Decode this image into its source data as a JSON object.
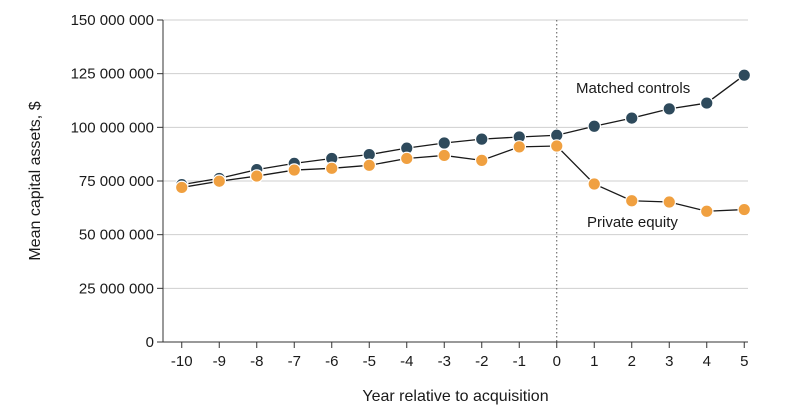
{
  "chart_data": {
    "type": "line",
    "xlabel": "Year relative to acquisition",
    "ylabel": "Mean capital assets, $",
    "x": [
      -10,
      -9,
      -8,
      -7,
      -6,
      -5,
      -4,
      -3,
      -2,
      -1,
      0,
      1,
      2,
      3,
      4,
      5
    ],
    "x_tick_labels": [
      "-10",
      "-9",
      "-8",
      "-7",
      "-6",
      "-5",
      "-4",
      "-3",
      "-2",
      "-1",
      "0",
      "1",
      "2",
      "3",
      "4",
      "5"
    ],
    "xlim": [
      -10.5,
      5.1
    ],
    "ylim": [
      0,
      150000000
    ],
    "y_ticks": [
      0,
      25000000,
      50000000,
      75000000,
      100000000,
      125000000,
      150000000
    ],
    "y_tick_labels": [
      "0",
      "25 000 000",
      "50 000 000",
      "75 000 000",
      "100 000 000",
      "125 000 000",
      "150 000 000"
    ],
    "grid": "horizontal",
    "reference_line_x": 0,
    "series": [
      {
        "name": "Matched controls",
        "color": "#2e4a5c",
        "values": [
          73300000,
          76200000,
          80300000,
          83200000,
          85500000,
          87300000,
          90300000,
          92700000,
          94500000,
          95500000,
          96300000,
          100500000,
          104300000,
          108600000,
          111300000,
          124300000
        ]
      },
      {
        "name": "Private equity",
        "color": "#f0a040",
        "values": [
          72000000,
          74900000,
          77300000,
          80100000,
          80900000,
          82300000,
          85500000,
          86900000,
          84600000,
          90900000,
          91300000,
          73600000,
          65800000,
          65200000,
          60900000,
          61700000
        ]
      }
    ]
  }
}
